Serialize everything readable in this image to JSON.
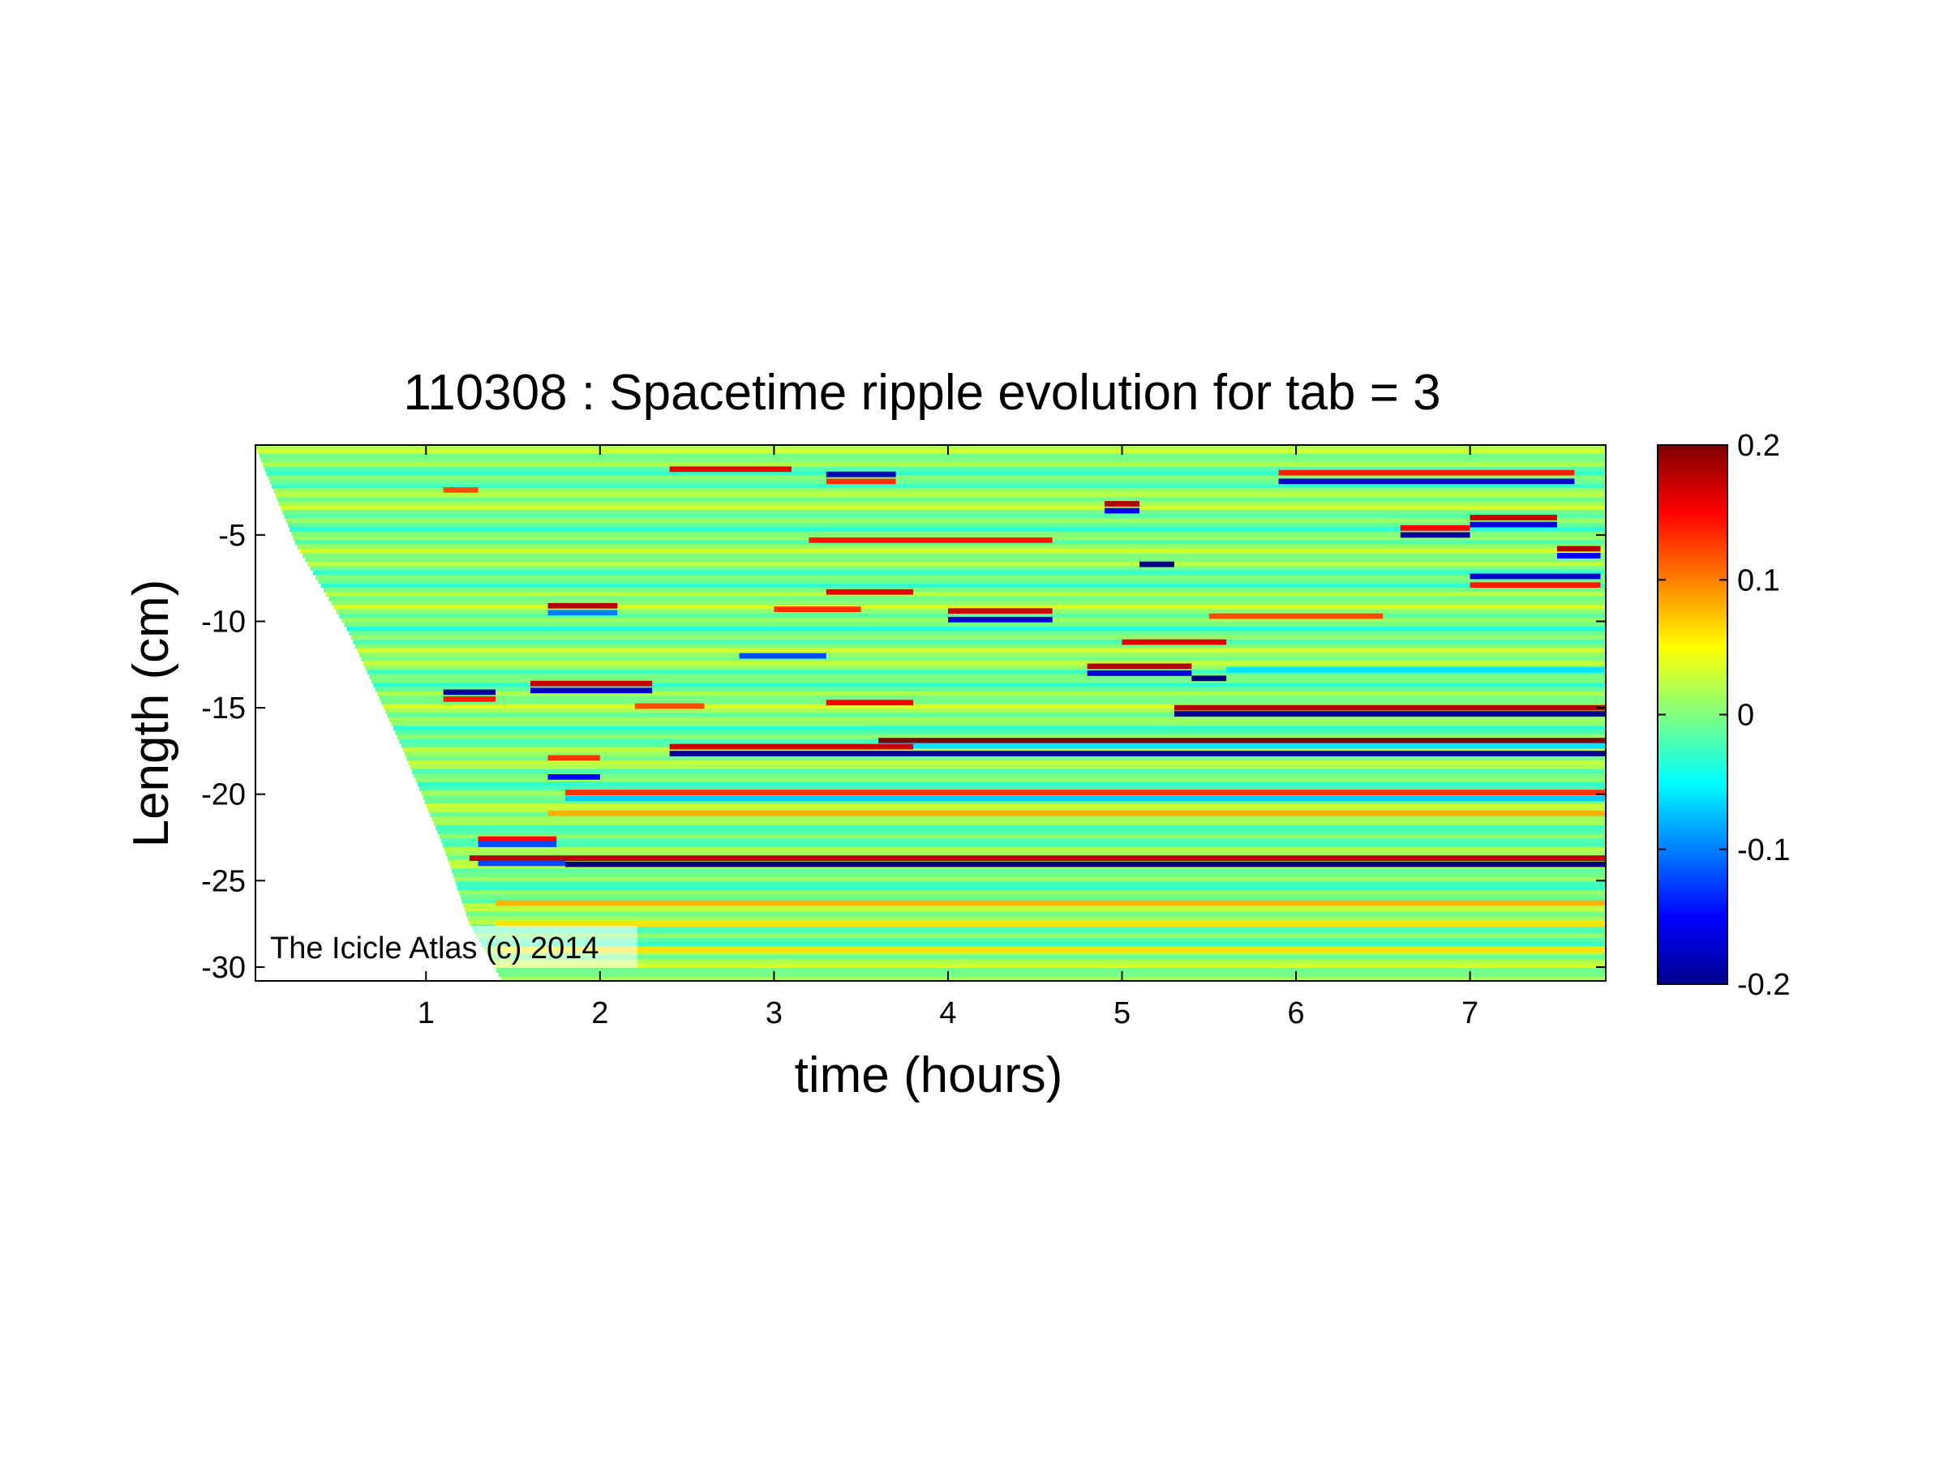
{
  "chart_data": {
    "type": "heatmap",
    "title": "110308 : Spacetime ripple evolution for tab = 3",
    "xlabel": "time (hours)",
    "ylabel": "Length (cm)",
    "xlim": [
      0.02,
      7.78
    ],
    "ylim": [
      -30.8,
      0.2
    ],
    "xticks": [
      1,
      2,
      3,
      4,
      5,
      6,
      7
    ],
    "yticks": [
      -5,
      -10,
      -15,
      -20,
      -25,
      -30
    ],
    "xtick_labels": [
      "1",
      "2",
      "3",
      "4",
      "5",
      "6",
      "7"
    ],
    "ytick_labels": [
      "-5",
      "-10",
      "-15",
      "-20",
      "-25",
      "-30"
    ],
    "colorbar": {
      "colormap": "jet",
      "clim": [
        -0.2,
        0.2
      ],
      "ticks": [
        0.2,
        0.1,
        0,
        -0.1,
        -0.2
      ],
      "tick_labels": [
        "0.2",
        "0.1",
        "0",
        "-0.1",
        "-0.2"
      ]
    },
    "grid": false,
    "annotation": "The Icicle Atlas (c) 2014",
    "growth_front": [
      [
        0.02,
        0.1
      ],
      [
        0.25,
        -5.5
      ],
      [
        0.55,
        -10.5
      ],
      [
        0.85,
        -17.0
      ],
      [
        1.1,
        -23.0
      ],
      [
        1.25,
        -27.5
      ],
      [
        1.45,
        -31.0
      ]
    ],
    "background_amplitude": 0.03,
    "features": [
      {
        "t0": 2.4,
        "t1": 3.1,
        "y": -1.2,
        "amp": 0.16
      },
      {
        "t0": 3.3,
        "t1": 3.7,
        "y": -1.5,
        "amp": -0.18
      },
      {
        "t0": 3.3,
        "t1": 3.7,
        "y": -1.9,
        "amp": 0.13
      },
      {
        "t0": 5.9,
        "t1": 7.6,
        "y": -1.9,
        "amp": -0.17
      },
      {
        "t0": 5.9,
        "t1": 7.6,
        "y": -1.4,
        "amp": 0.14
      },
      {
        "t0": 1.1,
        "t1": 1.3,
        "y": -2.4,
        "amp": 0.12
      },
      {
        "t0": 4.9,
        "t1": 5.1,
        "y": -3.2,
        "amp": 0.18
      },
      {
        "t0": 4.9,
        "t1": 5.1,
        "y": -3.6,
        "amp": -0.16
      },
      {
        "t0": 7.0,
        "t1": 7.5,
        "y": -4.0,
        "amp": 0.17
      },
      {
        "t0": 7.0,
        "t1": 7.5,
        "y": -4.4,
        "amp": -0.16
      },
      {
        "t0": 6.6,
        "t1": 7.0,
        "y": -5.0,
        "amp": -0.19
      },
      {
        "t0": 6.6,
        "t1": 7.0,
        "y": -4.6,
        "amp": 0.15
      },
      {
        "t0": 3.2,
        "t1": 4.6,
        "y": -5.3,
        "amp": 0.14
      },
      {
        "t0": 7.5,
        "t1": 7.75,
        "y": -5.8,
        "amp": 0.18
      },
      {
        "t0": 7.5,
        "t1": 7.75,
        "y": -6.2,
        "amp": -0.15
      },
      {
        "t0": 5.1,
        "t1": 5.3,
        "y": -6.7,
        "amp": -0.2
      },
      {
        "t0": 7.0,
        "t1": 7.75,
        "y": -7.4,
        "amp": -0.17
      },
      {
        "t0": 7.0,
        "t1": 7.75,
        "y": -7.9,
        "amp": 0.14
      },
      {
        "t0": 3.3,
        "t1": 3.8,
        "y": -8.3,
        "amp": 0.16
      },
      {
        "t0": 1.7,
        "t1": 2.1,
        "y": -9.1,
        "amp": 0.18
      },
      {
        "t0": 1.7,
        "t1": 2.1,
        "y": -9.5,
        "amp": -0.1
      },
      {
        "t0": 3.0,
        "t1": 3.5,
        "y": -9.3,
        "amp": 0.13
      },
      {
        "t0": 4.0,
        "t1": 4.6,
        "y": -9.4,
        "amp": 0.17
      },
      {
        "t0": 4.0,
        "t1": 4.6,
        "y": -9.9,
        "amp": -0.17
      },
      {
        "t0": 5.5,
        "t1": 6.5,
        "y": -9.7,
        "amp": 0.12
      },
      {
        "t0": 5.0,
        "t1": 5.6,
        "y": -11.2,
        "amp": 0.16
      },
      {
        "t0": 2.8,
        "t1": 3.3,
        "y": -12.0,
        "amp": -0.12
      },
      {
        "t0": 4.8,
        "t1": 5.4,
        "y": -12.6,
        "amp": 0.18
      },
      {
        "t0": 4.8,
        "t1": 5.4,
        "y": -13.0,
        "amp": -0.17
      },
      {
        "t0": 5.4,
        "t1": 5.6,
        "y": -13.3,
        "amp": -0.2
      },
      {
        "t0": 5.6,
        "t1": 7.78,
        "y": -12.8,
        "amp": -0.06
      },
      {
        "t0": 1.6,
        "t1": 2.3,
        "y": -13.6,
        "amp": 0.17
      },
      {
        "t0": 1.6,
        "t1": 2.3,
        "y": -14.0,
        "amp": -0.17
      },
      {
        "t0": 1.1,
        "t1": 1.4,
        "y": -14.1,
        "amp": -0.19
      },
      {
        "t0": 1.1,
        "t1": 1.4,
        "y": -14.5,
        "amp": 0.14
      },
      {
        "t0": 2.2,
        "t1": 2.6,
        "y": -14.9,
        "amp": 0.12
      },
      {
        "t0": 3.3,
        "t1": 3.8,
        "y": -14.7,
        "amp": 0.15
      },
      {
        "t0": 5.3,
        "t1": 7.78,
        "y": -15.0,
        "amp": 0.18
      },
      {
        "t0": 5.3,
        "t1": 7.78,
        "y": -15.35,
        "amp": -0.2
      },
      {
        "t0": 3.6,
        "t1": 7.78,
        "y": -16.9,
        "amp": 0.2
      },
      {
        "t0": 3.6,
        "t1": 7.78,
        "y": -17.2,
        "amp": -0.06
      },
      {
        "t0": 2.4,
        "t1": 3.8,
        "y": -17.25,
        "amp": 0.17
      },
      {
        "t0": 2.4,
        "t1": 7.78,
        "y": -17.65,
        "amp": -0.2
      },
      {
        "t0": 1.7,
        "t1": 2.0,
        "y": -17.9,
        "amp": 0.13
      },
      {
        "t0": 1.7,
        "t1": 2.0,
        "y": -19.0,
        "amp": -0.15
      },
      {
        "t0": 1.8,
        "t1": 7.78,
        "y": -19.9,
        "amp": 0.13
      },
      {
        "t0": 1.8,
        "t1": 7.78,
        "y": -20.25,
        "amp": -0.07
      },
      {
        "t0": 1.7,
        "t1": 7.78,
        "y": -21.1,
        "amp": 0.08
      },
      {
        "t0": 1.3,
        "t1": 1.75,
        "y": -22.6,
        "amp": 0.15
      },
      {
        "t0": 1.3,
        "t1": 1.75,
        "y": -22.9,
        "amp": -0.12
      },
      {
        "t0": 1.25,
        "t1": 7.78,
        "y": -23.7,
        "amp": 0.18
      },
      {
        "t0": 1.8,
        "t1": 7.78,
        "y": -24.05,
        "amp": -0.2
      },
      {
        "t0": 1.3,
        "t1": 1.8,
        "y": -24.0,
        "amp": -0.12
      },
      {
        "t0": 1.4,
        "t1": 7.78,
        "y": -26.3,
        "amp": 0.08
      },
      {
        "t0": 1.4,
        "t1": 7.78,
        "y": -27.5,
        "amp": 0.06
      },
      {
        "t0": 1.4,
        "t1": 7.78,
        "y": -29.0,
        "amp": 0.06
      }
    ]
  }
}
